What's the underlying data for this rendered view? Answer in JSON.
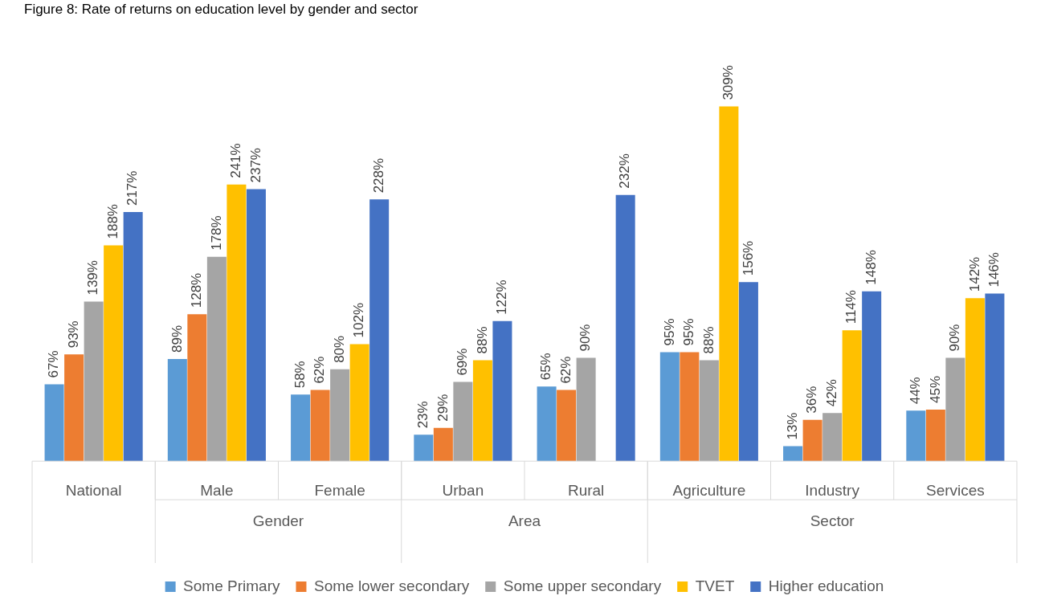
{
  "chart_data": {
    "type": "bar",
    "title": "Figure 8: Rate of returns on education level by gender and sector",
    "categories": [
      "National",
      "Male",
      "Female",
      "Urban",
      "Rural",
      "Agriculture",
      "Industry",
      "Services"
    ],
    "annotations": [
      "Gender",
      "Area",
      "Sector"
    ],
    "legend": "bottom",
    "series": [
      {
        "name": "Some Primary",
        "color": "#5b9bd5",
        "values": [
          67,
          89,
          58,
          23,
          65,
          95,
          13,
          44
        ],
        "value_labels": [
          "67%",
          "89%",
          "58%",
          "23%",
          "65%",
          "95%",
          "13%",
          "44%"
        ]
      },
      {
        "name": "Some lower secondary",
        "color": "#ed7d31",
        "values": [
          93,
          128,
          62,
          29,
          62,
          95,
          36,
          45
        ],
        "value_labels": [
          "93%",
          "128%",
          "62%",
          "29%",
          "62%",
          "95%",
          "36%",
          "45%"
        ]
      },
      {
        "name": "Some upper secondary",
        "color": "#a5a5a5",
        "values": [
          139,
          178,
          80,
          69,
          90,
          88,
          42,
          90
        ],
        "value_labels": [
          "139%",
          "178%",
          "80%",
          "69%",
          "90%",
          "88%",
          "42%",
          "90%"
        ]
      },
      {
        "name": "TVET",
        "color": "#ffc000",
        "values": [
          188,
          241,
          102,
          88,
          null,
          309,
          114,
          142
        ],
        "value_labels": [
          "188%",
          "241%",
          "102%",
          "88%",
          null,
          "309%",
          "114%",
          "142%"
        ]
      },
      {
        "name": "Higher education",
        "color": "#4472c4",
        "values": [
          217,
          237,
          228,
          122,
          232,
          156,
          148,
          146
        ],
        "value_labels": [
          "217%",
          "237%",
          "228%",
          "122%",
          "232%",
          "156%",
          "148%",
          "146%"
        ]
      }
    ]
  }
}
